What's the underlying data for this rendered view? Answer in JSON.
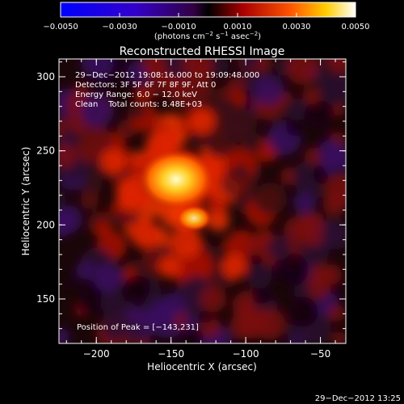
{
  "colorbar": {
    "tick_labels": [
      "−0.0050",
      "−0.0030",
      "−0.0010",
      "0.0010",
      "0.0030",
      "0.0050"
    ],
    "tick_values": [
      -0.005,
      -0.003,
      -0.001,
      0.001,
      0.003,
      0.005
    ],
    "range": [
      -0.005,
      0.005
    ],
    "unit_main": "(photons cm",
    "unit_sup1": "−2",
    "unit_mid": " s",
    "unit_sup2": "−1",
    "unit_mid2": " asec",
    "unit_sup3": "−2",
    "unit_end": ")"
  },
  "plot": {
    "title": "Reconstructed RHESSI Image",
    "xlabel": "Heliocentric X (arcsec)",
    "ylabel": "Heliocentric Y (arcsec)",
    "x_ticks": [
      "−200",
      "−150",
      "−100",
      "−50"
    ],
    "y_ticks": [
      "300",
      "250",
      "200",
      "150"
    ],
    "x_tick_values": [
      -200,
      -150,
      -100,
      -50
    ],
    "y_tick_values": [
      300,
      250,
      200,
      150
    ],
    "xlim": [
      -225,
      -33
    ],
    "ylim": [
      120,
      312
    ]
  },
  "info": {
    "line1": "29−Dec−2012 19:08:16.000 to 19:09:48.000",
    "line2": "Detectors: 3F 5F 6F 7F 8F 9F, Att 0",
    "line3": "Energy Range: 6.0 − 12.0 keV",
    "line4": "Clean    Total counts: 8.48E+03",
    "peak": "Position of Peak = [−143,231]"
  },
  "footer": {
    "timestamp": "29−Dec−2012 13:25"
  },
  "colors": {
    "background": "#000000",
    "text": "#ffffff"
  }
}
